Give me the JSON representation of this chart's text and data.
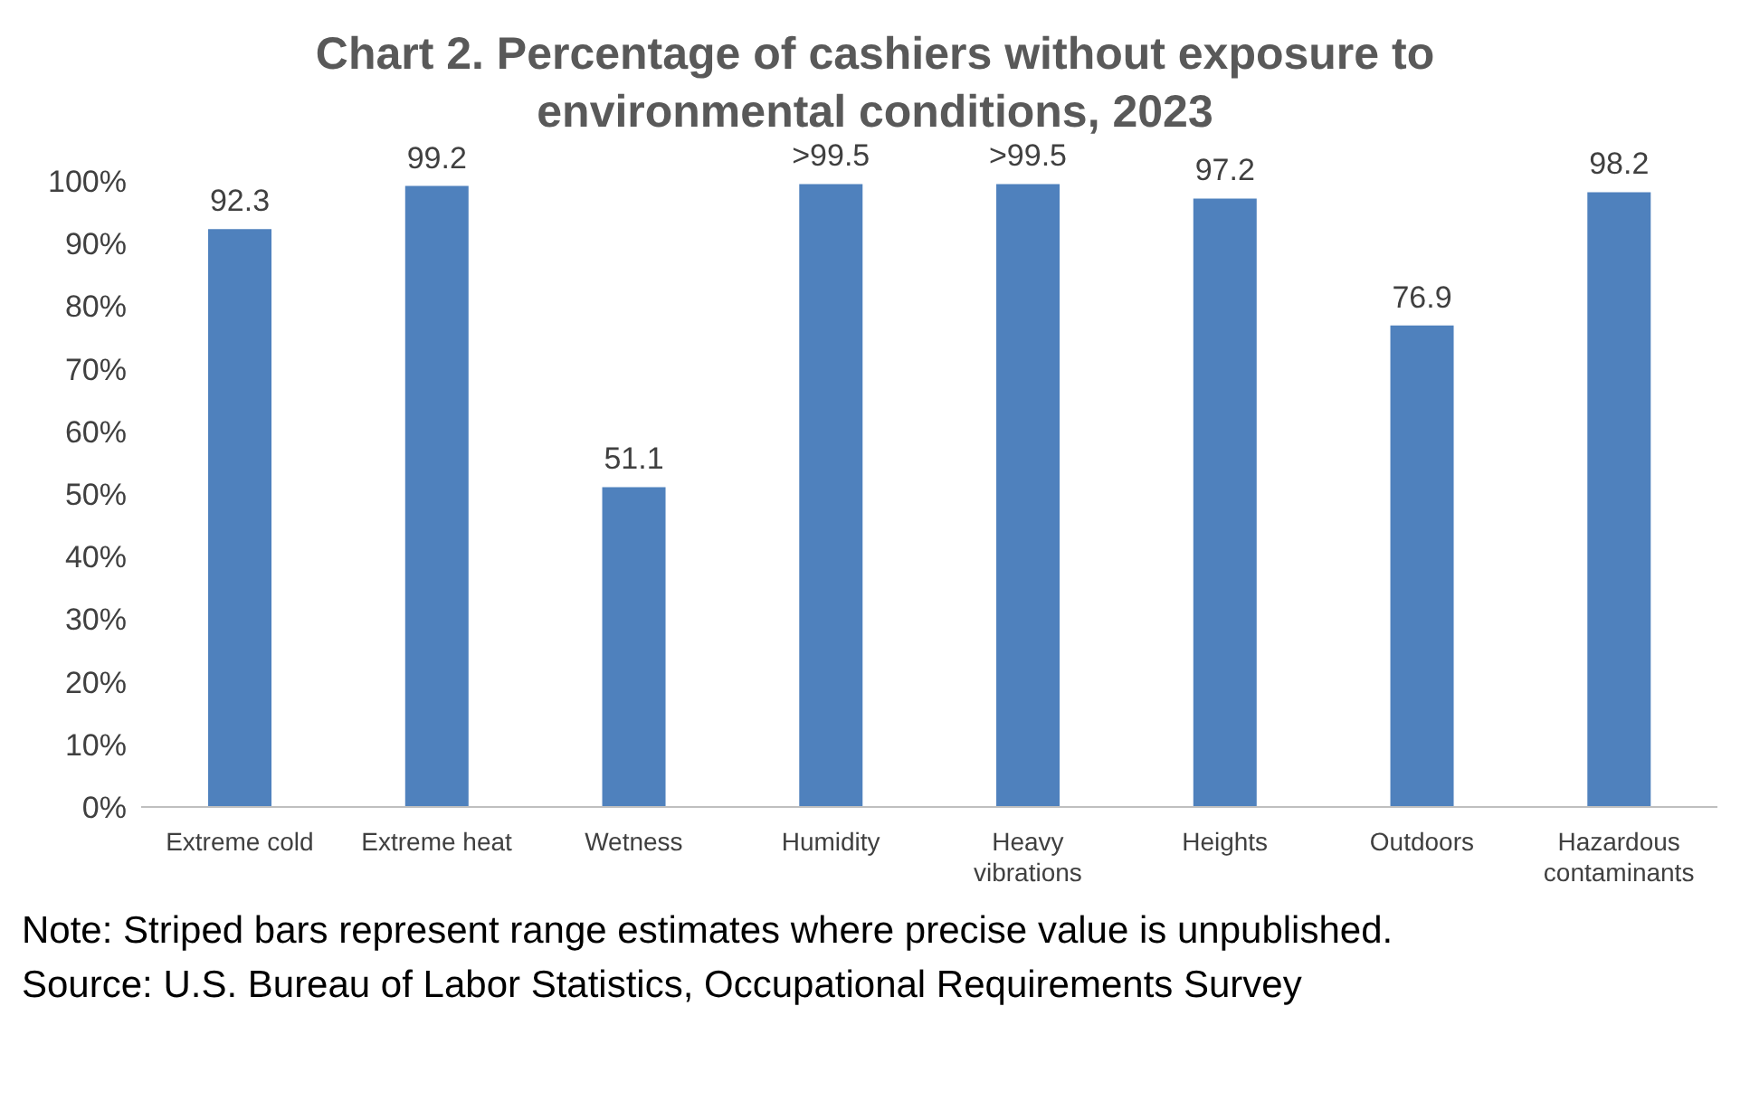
{
  "chart_data": {
    "type": "bar",
    "title": "Chart 2. Percentage of cashiers without exposure to environmental conditions, 2023",
    "categories": [
      "Extreme cold",
      "Extreme heat",
      "Wetness",
      "Humidity",
      "Heavy vibrations",
      "Heights",
      "Outdoors",
      "Hazardous contaminants"
    ],
    "values": [
      92.3,
      99.2,
      51.1,
      99.5,
      99.5,
      97.2,
      76.9,
      98.2
    ],
    "value_labels": [
      "92.3",
      "99.2",
      "51.1",
      ">99.5",
      ">99.5",
      "97.2",
      "76.9",
      "98.2"
    ],
    "color": "#4f81bd",
    "ylim": [
      0,
      100
    ],
    "yticks": [
      {
        "value": 0,
        "label": "0%"
      },
      {
        "value": 10,
        "label": "10%"
      },
      {
        "value": 20,
        "label": "20%"
      },
      {
        "value": 30,
        "label": "30%"
      },
      {
        "value": 40,
        "label": "40%"
      },
      {
        "value": 50,
        "label": "50%"
      },
      {
        "value": 60,
        "label": "60%"
      },
      {
        "value": 70,
        "label": "70%"
      },
      {
        "value": 80,
        "label": "80%"
      },
      {
        "value": 90,
        "label": "90%"
      },
      {
        "value": 100,
        "label": "100%"
      }
    ],
    "grid": false,
    "legend": false,
    "annotations": [
      "Note: Striped bars represent range estimates where precise value is unpublished.",
      "Source: U.S. Bureau of Labor Statistics, Occupational Requirements Survey"
    ]
  }
}
